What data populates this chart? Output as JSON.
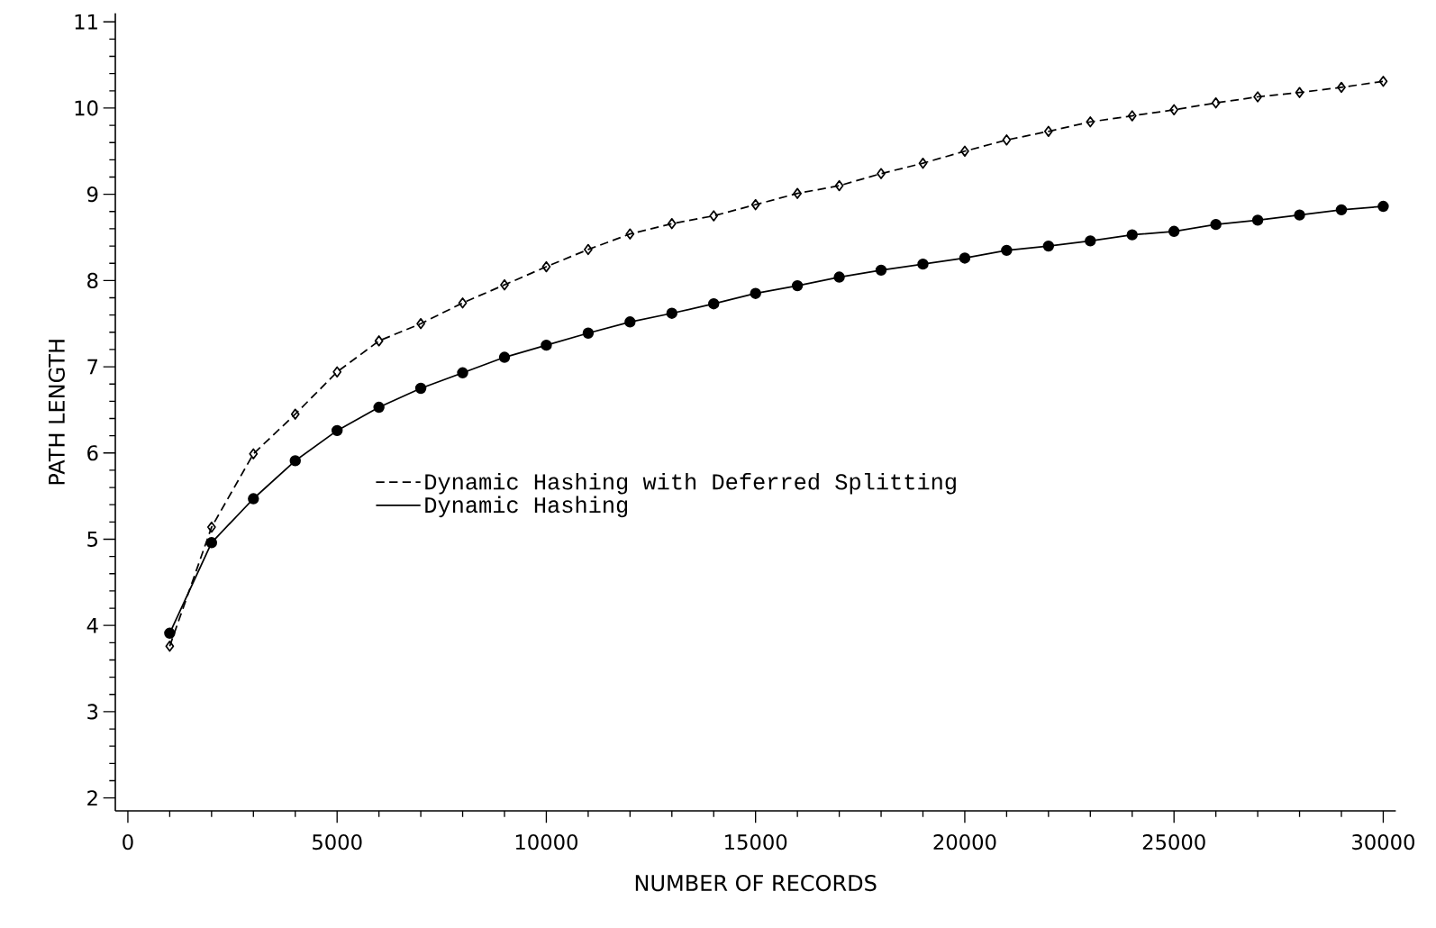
{
  "chart_data": {
    "type": "line",
    "xlabel": "NUMBER OF RECORDS",
    "ylabel": "PATH LENGTH",
    "x": [
      1000,
      2000,
      3000,
      4000,
      5000,
      6000,
      7000,
      8000,
      9000,
      10000,
      11000,
      12000,
      13000,
      14000,
      15000,
      16000,
      17000,
      18000,
      19000,
      20000,
      21000,
      22000,
      23000,
      24000,
      25000,
      26000,
      27000,
      28000,
      29000,
      30000
    ],
    "series": [
      {
        "name": "Dynamic Hashing with Deferred Splitting",
        "color": "#000000",
        "marker": "diamond",
        "line_style": "dashed",
        "values": [
          3.76,
          5.14,
          5.99,
          6.45,
          6.94,
          7.3,
          7.5,
          7.74,
          7.95,
          8.16,
          8.36,
          8.54,
          8.66,
          8.75,
          8.88,
          9.01,
          9.1,
          9.24,
          9.36,
          9.5,
          9.63,
          9.73,
          9.84,
          9.91,
          9.98,
          10.06,
          10.13,
          10.18,
          10.24,
          10.31
        ]
      },
      {
        "name": "Dynamic Hashing",
        "color": "#000000",
        "marker": "circle",
        "line_style": "solid",
        "values": [
          3.91,
          4.96,
          5.47,
          5.91,
          6.26,
          6.53,
          6.75,
          6.93,
          7.11,
          7.25,
          7.39,
          7.52,
          7.62,
          7.73,
          7.85,
          7.94,
          8.04,
          8.12,
          8.19,
          8.26,
          8.35,
          8.4,
          8.46,
          8.53,
          8.57,
          8.65,
          8.7,
          8.76,
          8.82,
          8.86
        ]
      }
    ],
    "xlim": [
      -300,
      30300
    ],
    "ylim": [
      1.85,
      11.1
    ],
    "xticks": [
      0,
      5000,
      10000,
      15000,
      20000,
      25000,
      30000
    ],
    "yticks": [
      2,
      3,
      4,
      5,
      6,
      7,
      8,
      9,
      10,
      11
    ],
    "grid": false,
    "legend": "left"
  }
}
